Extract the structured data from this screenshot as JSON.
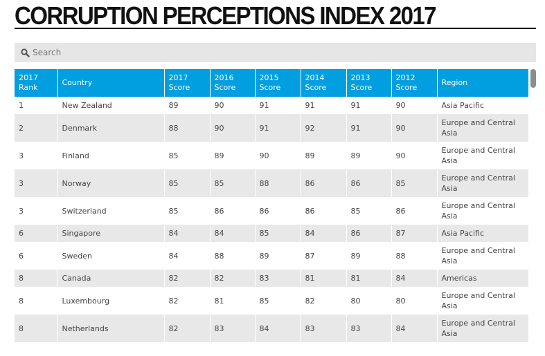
{
  "page": {
    "title": "CORRUPTION PERCEPTIONS INDEX 2017"
  },
  "search": {
    "placeholder": "Search",
    "icon": "search-icon"
  },
  "colors": {
    "header_bg": "#029fe0",
    "stripe": "#e8e8e8",
    "search_bg": "#e6e6e6"
  },
  "table": {
    "headers": [
      [
        "2017",
        "Rank"
      ],
      [
        "Country",
        ""
      ],
      [
        "2017",
        "Score"
      ],
      [
        "2016",
        "Score"
      ],
      [
        "2015",
        "Score"
      ],
      [
        "2014",
        "Score"
      ],
      [
        "2013",
        "Score"
      ],
      [
        "2012",
        "Score"
      ],
      [
        "Region",
        ""
      ]
    ],
    "rows": [
      {
        "rank": "1",
        "country": "New Zealand",
        "s2017": "89",
        "s2016": "90",
        "s2015": "91",
        "s2014": "91",
        "s2013": "91",
        "s2012": "90",
        "region": [
          "Asia Pacific",
          ""
        ]
      },
      {
        "rank": "2",
        "country": "Denmark",
        "s2017": "88",
        "s2016": "90",
        "s2015": "91",
        "s2014": "92",
        "s2013": "91",
        "s2012": "90",
        "region": [
          "Europe and Central",
          "Asia"
        ]
      },
      {
        "rank": "3",
        "country": "Finland",
        "s2017": "85",
        "s2016": "89",
        "s2015": "90",
        "s2014": "89",
        "s2013": "89",
        "s2012": "90",
        "region": [
          "Europe and Central",
          "Asia"
        ]
      },
      {
        "rank": "3",
        "country": "Norway",
        "s2017": "85",
        "s2016": "85",
        "s2015": "88",
        "s2014": "86",
        "s2013": "86",
        "s2012": "85",
        "region": [
          "Europe and Central",
          "Asia"
        ]
      },
      {
        "rank": "3",
        "country": "Switzerland",
        "s2017": "85",
        "s2016": "86",
        "s2015": "86",
        "s2014": "86",
        "s2013": "85",
        "s2012": "86",
        "region": [
          "Europe and Central",
          "Asia"
        ]
      },
      {
        "rank": "6",
        "country": "Singapore",
        "s2017": "84",
        "s2016": "84",
        "s2015": "85",
        "s2014": "84",
        "s2013": "86",
        "s2012": "87",
        "region": [
          "Asia Pacific",
          ""
        ]
      },
      {
        "rank": "6",
        "country": "Sweden",
        "s2017": "84",
        "s2016": "88",
        "s2015": "89",
        "s2014": "87",
        "s2013": "89",
        "s2012": "88",
        "region": [
          "Europe and Central",
          "Asia"
        ]
      },
      {
        "rank": "8",
        "country": "Canada",
        "s2017": "82",
        "s2016": "82",
        "s2015": "83",
        "s2014": "81",
        "s2013": "81",
        "s2012": "84",
        "region": [
          "Americas",
          ""
        ]
      },
      {
        "rank": "8",
        "country": "Luxembourg",
        "s2017": "82",
        "s2016": "81",
        "s2015": "85",
        "s2014": "82",
        "s2013": "80",
        "s2012": "80",
        "region": [
          "Europe and Central",
          "Asia"
        ]
      },
      {
        "rank": "8",
        "country": "Netherlands",
        "s2017": "82",
        "s2016": "83",
        "s2015": "84",
        "s2014": "83",
        "s2013": "83",
        "s2012": "84",
        "region": [
          "Europe and Central",
          "Asia"
        ]
      }
    ]
  }
}
